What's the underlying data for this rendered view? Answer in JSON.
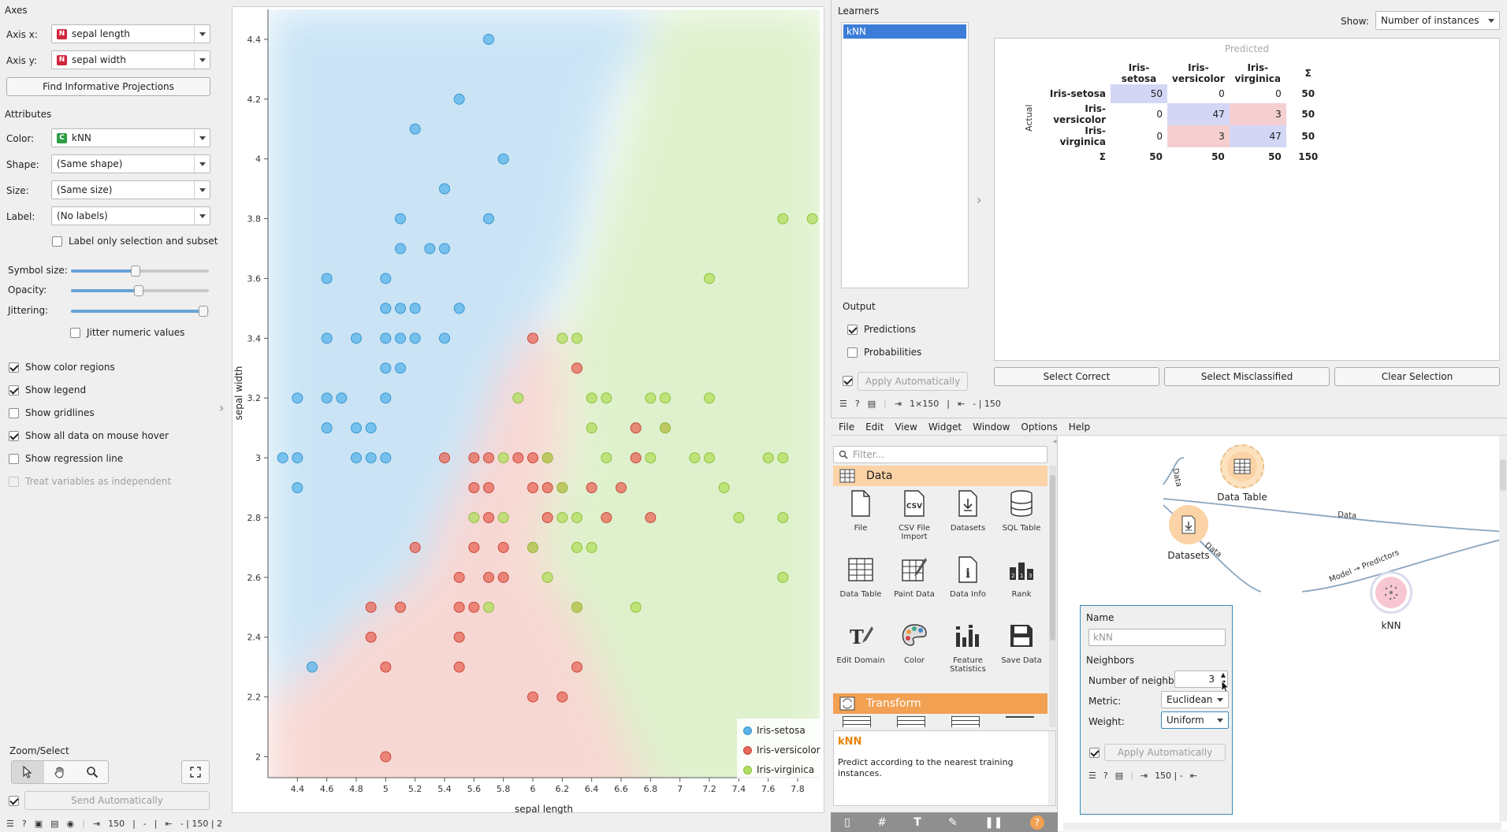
{
  "axes": {
    "section": "Axes",
    "x_label": "Axis x:",
    "x_value": "sepal length",
    "y_label": "Axis y:",
    "y_value": "sepal width",
    "type_badge": "N",
    "find_button": "Find Informative Projections"
  },
  "attributes": {
    "section": "Attributes",
    "color_label": "Color:",
    "color_value": "kNN",
    "color_badge": "C",
    "shape_label": "Shape:",
    "shape_value": "(Same shape)",
    "size_label": "Size:",
    "size_value": "(Same size)",
    "label_label": "Label:",
    "label_value": "(No labels)",
    "label_only": "Label only selection and subset"
  },
  "sliders": {
    "symbol_size_label": "Symbol size:",
    "symbol_size": 0.47,
    "opacity_label": "Opacity:",
    "opacity": 0.49,
    "jittering_label": "Jittering:",
    "jittering": 0.96,
    "jitter_numeric": "Jitter numeric values"
  },
  "options": [
    {
      "label": "Show color regions",
      "checked": true,
      "enabled": true
    },
    {
      "label": "Show legend",
      "checked": true,
      "enabled": true
    },
    {
      "label": "Show gridlines",
      "checked": false,
      "enabled": true
    },
    {
      "label": "Show all data on mouse hover",
      "checked": true,
      "enabled": true
    },
    {
      "label": "Show regression line",
      "checked": false,
      "enabled": true
    },
    {
      "label": "Treat variables as independent",
      "checked": false,
      "enabled": false
    }
  ],
  "zoom": {
    "section": "Zoom/Select",
    "send_button": "Send Automatically"
  },
  "status_left": {
    "count": "150",
    "dash": "-",
    "out": "- | 150 | 2"
  },
  "colors": {
    "setosa": "#5ab4e9",
    "versicolor": "#e8685a",
    "virginica": "#b1de5e"
  },
  "chart_data": {
    "type": "scatter",
    "xlabel": "sepal length",
    "ylabel": "sepal width",
    "xlim": [
      4.2,
      7.95
    ],
    "ylim": [
      1.93,
      4.5
    ],
    "xticks": [
      "4.4",
      "4.6",
      "4.8",
      "5",
      "5.2",
      "5.4",
      "5.6",
      "5.8",
      "6",
      "6.2",
      "6.4",
      "6.6",
      "6.8",
      "7",
      "7.2",
      "7.4",
      "7.6",
      "7.8"
    ],
    "yticks": [
      "2",
      "2.2",
      "2.4",
      "2.6",
      "2.8",
      "3",
      "3.2",
      "3.4",
      "3.6",
      "3.8",
      "4",
      "4.2",
      "4.4"
    ],
    "legend": [
      "Iris-setosa",
      "Iris-versicolor",
      "Iris-virginica"
    ],
    "legend_position": "bottom-right",
    "series": [
      {
        "name": "Iris-setosa",
        "points": [
          [
            5.7,
            4.4
          ],
          [
            5.5,
            4.2
          ],
          [
            5.2,
            4.1
          ],
          [
            5.8,
            4.0
          ],
          [
            5.4,
            3.9
          ],
          [
            5.1,
            3.8
          ],
          [
            5.7,
            3.8
          ],
          [
            5.1,
            3.7
          ],
          [
            5.3,
            3.7
          ],
          [
            5.4,
            3.7
          ],
          [
            4.6,
            3.6
          ],
          [
            5.0,
            3.6
          ],
          [
            5.0,
            3.5
          ],
          [
            5.1,
            3.5
          ],
          [
            5.2,
            3.5
          ],
          [
            5.5,
            3.5
          ],
          [
            4.6,
            3.4
          ],
          [
            4.8,
            3.4
          ],
          [
            5.0,
            3.4
          ],
          [
            5.1,
            3.4
          ],
          [
            5.2,
            3.4
          ],
          [
            5.4,
            3.4
          ],
          [
            5.0,
            3.3
          ],
          [
            5.1,
            3.3
          ],
          [
            4.4,
            3.2
          ],
          [
            4.6,
            3.2
          ],
          [
            4.7,
            3.2
          ],
          [
            5.0,
            3.2
          ],
          [
            4.6,
            3.1
          ],
          [
            4.8,
            3.1
          ],
          [
            4.9,
            3.1
          ],
          [
            4.3,
            3.0
          ],
          [
            4.4,
            3.0
          ],
          [
            4.8,
            3.0
          ],
          [
            4.9,
            3.0
          ],
          [
            5.0,
            3.0
          ],
          [
            4.4,
            2.9
          ],
          [
            4.5,
            2.3
          ]
        ]
      },
      {
        "name": "Iris-versicolor",
        "points": [
          [
            6.0,
            3.4
          ],
          [
            6.3,
            3.3
          ],
          [
            6.7,
            3.1
          ],
          [
            6.9,
            3.1
          ],
          [
            5.4,
            3.0
          ],
          [
            5.6,
            3.0
          ],
          [
            5.7,
            3.0
          ],
          [
            5.9,
            3.0
          ],
          [
            6.0,
            3.0
          ],
          [
            6.1,
            3.0
          ],
          [
            6.7,
            3.0
          ],
          [
            5.6,
            2.9
          ],
          [
            5.7,
            2.9
          ],
          [
            6.0,
            2.9
          ],
          [
            6.1,
            2.9
          ],
          [
            6.2,
            2.9
          ],
          [
            6.4,
            2.9
          ],
          [
            6.6,
            2.9
          ],
          [
            5.7,
            2.8
          ],
          [
            6.1,
            2.8
          ],
          [
            6.5,
            2.8
          ],
          [
            6.8,
            2.8
          ],
          [
            5.2,
            2.7
          ],
          [
            5.6,
            2.7
          ],
          [
            5.8,
            2.7
          ],
          [
            6.0,
            2.7
          ],
          [
            6.3,
            2.5
          ],
          [
            5.5,
            2.6
          ],
          [
            5.7,
            2.6
          ],
          [
            5.8,
            2.6
          ],
          [
            4.9,
            2.5
          ],
          [
            5.1,
            2.5
          ],
          [
            5.5,
            2.5
          ],
          [
            5.6,
            2.5
          ],
          [
            4.9,
            2.4
          ],
          [
            5.5,
            2.4
          ],
          [
            5.0,
            2.3
          ],
          [
            5.5,
            2.3
          ],
          [
            6.3,
            2.3
          ],
          [
            6.0,
            2.2
          ],
          [
            6.2,
            2.2
          ],
          [
            5.0,
            2.0
          ]
        ]
      },
      {
        "name": "Iris-virginica",
        "points": [
          [
            7.7,
            3.8
          ],
          [
            7.9,
            3.8
          ],
          [
            7.2,
            3.6
          ],
          [
            6.2,
            3.4
          ],
          [
            6.3,
            3.4
          ],
          [
            5.9,
            3.2
          ],
          [
            6.4,
            3.2
          ],
          [
            6.5,
            3.2
          ],
          [
            6.8,
            3.2
          ],
          [
            6.9,
            3.2
          ],
          [
            7.2,
            3.2
          ],
          [
            6.4,
            3.1
          ],
          [
            6.9,
            3.1
          ],
          [
            6.5,
            3.0
          ],
          [
            7.1,
            3.0
          ],
          [
            7.2,
            3.0
          ],
          [
            7.6,
            3.0
          ],
          [
            7.7,
            3.0
          ],
          [
            6.8,
            3.0
          ],
          [
            6.1,
            3.0
          ],
          [
            5.8,
            3.0
          ],
          [
            7.3,
            2.9
          ],
          [
            5.6,
            2.8
          ],
          [
            5.8,
            2.8
          ],
          [
            6.2,
            2.8
          ],
          [
            6.3,
            2.8
          ],
          [
            7.4,
            2.8
          ],
          [
            7.7,
            2.8
          ],
          [
            6.3,
            2.7
          ],
          [
            6.4,
            2.7
          ],
          [
            6.0,
            2.7
          ],
          [
            7.7,
            2.6
          ],
          [
            6.1,
            2.6
          ],
          [
            5.7,
            2.5
          ],
          [
            6.3,
            2.5
          ],
          [
            6.7,
            2.5
          ],
          [
            6.2,
            2.9
          ]
        ]
      }
    ]
  },
  "learners": {
    "section": "Learners",
    "items": [
      "kNN"
    ]
  },
  "output": {
    "section": "Output",
    "predictions": "Predictions",
    "probabilities": "Probabilities",
    "apply": "Apply Automatically"
  },
  "show": {
    "label": "Show:",
    "value": "Number of instances"
  },
  "confusion": {
    "predicted": "Predicted",
    "actual": "Actual",
    "classes": [
      "Iris-setosa",
      "Iris-versicolor",
      "Iris-virginica"
    ],
    "sigma": "Σ",
    "rows": [
      [
        "50",
        "0",
        "0",
        "50"
      ],
      [
        "0",
        "47",
        "3",
        "50"
      ],
      [
        "0",
        "3",
        "47",
        "50"
      ]
    ],
    "totals": [
      "50",
      "50",
      "50",
      "150"
    ]
  },
  "cm_buttons": {
    "correct": "Select Correct",
    "misclassified": "Select Misclassified",
    "clear": "Clear Selection"
  },
  "status_cm": {
    "size": "1×150",
    "out": "- | 150"
  },
  "menu": [
    "File",
    "Edit",
    "View",
    "Widget",
    "Window",
    "Options",
    "Help"
  ],
  "toolbox": {
    "filter_placeholder": "Filter...",
    "data_cat": "Data",
    "transform_cat": "Transform",
    "widgets": [
      {
        "name": "File",
        "icon": "file-icon"
      },
      {
        "name": "CSV File Import",
        "icon": "csv-icon"
      },
      {
        "name": "Datasets",
        "icon": "datasets-icon"
      },
      {
        "name": "SQL Table",
        "icon": "database-icon"
      },
      {
        "name": "Data Table",
        "icon": "table-icon"
      },
      {
        "name": "Paint Data",
        "icon": "paint-icon"
      },
      {
        "name": "Data Info",
        "icon": "info-icon"
      },
      {
        "name": "Rank",
        "icon": "rank-icon"
      },
      {
        "name": "Edit Domain",
        "icon": "edit-domain-icon"
      },
      {
        "name": "Color",
        "icon": "palette-icon"
      },
      {
        "name": "Feature Statistics",
        "icon": "stats-icon"
      },
      {
        "name": "Save Data",
        "icon": "save-icon"
      }
    ],
    "help_title": "kNN",
    "help_text": "Predict according to the nearest training instances."
  },
  "canvas": {
    "nodes": {
      "table": "Data Table",
      "datasets": "Datasets",
      "knn": "kNN"
    },
    "links": {
      "data1": "Data",
      "data2": "Data",
      "data3": "Data",
      "model": "Model → Predictors"
    }
  },
  "knn_widget": {
    "name_section": "Name",
    "name_placeholder": "kNN",
    "neighbors_section": "Neighbors",
    "num_label": "Number of neighbors:",
    "num_value": "3",
    "metric_label": "Metric:",
    "metric_value": "Euclidean",
    "weight_label": "Weight:",
    "weight_value": "Uniform",
    "apply": "Apply Automatically",
    "status": "150 | -"
  }
}
